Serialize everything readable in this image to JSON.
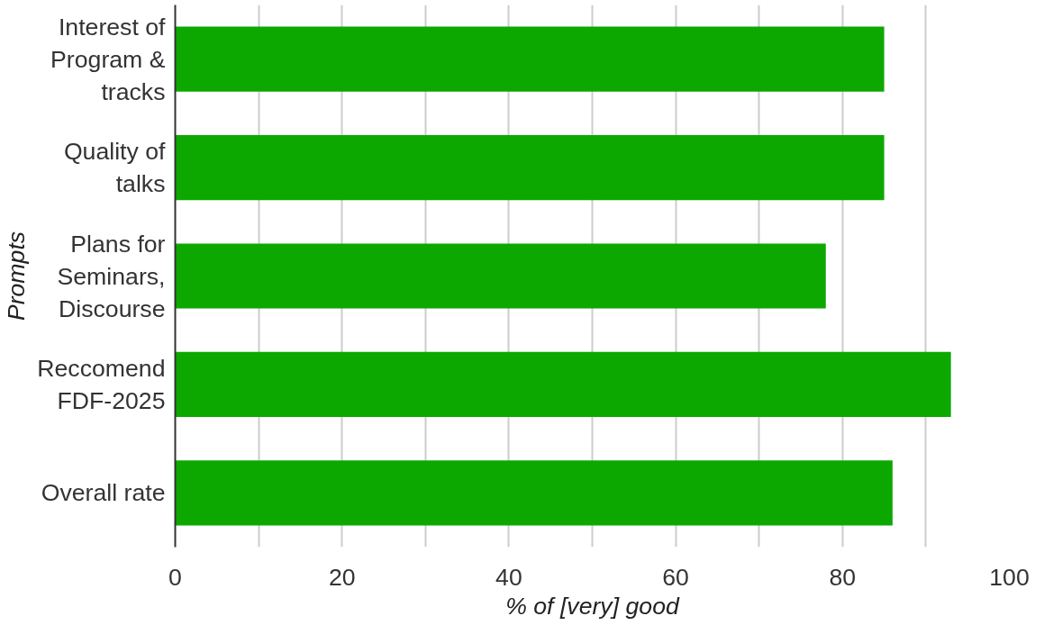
{
  "chart_data": {
    "type": "bar",
    "orientation": "horizontal",
    "xlabel": "% of [very] good",
    "ylabel": "Prompts",
    "categories": [
      "Interest of Program & tracks",
      "Quality of talks",
      "Plans for Seminars, Discourse",
      "Reccomend FDF-2025",
      "Overall rate"
    ],
    "values": [
      85,
      85,
      78,
      93,
      86
    ],
    "color": "#0ca800",
    "xlim": [
      0,
      100
    ],
    "xticks": [
      0,
      {
        "value": 10,
        "label": null
      },
      20,
      {
        "value": 30,
        "label": null
      },
      40,
      {
        "value": 50,
        "label": null
      },
      60,
      {
        "value": 70,
        "label": null
      },
      80,
      {
        "value": 90,
        "label": null
      },
      100
    ],
    "grid": "x"
  }
}
